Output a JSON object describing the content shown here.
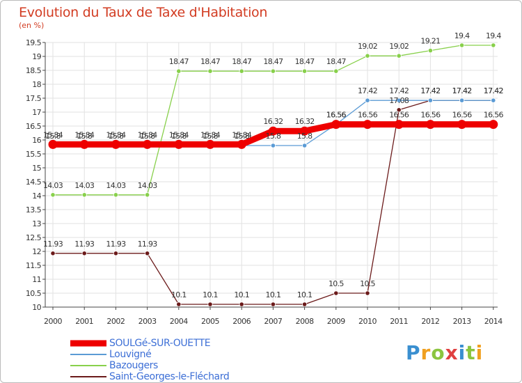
{
  "header": {
    "title": "Evolution du Taux de Taxe d'Habitation",
    "unit": "(en %)"
  },
  "chart_data": {
    "type": "line",
    "title": "Evolution du Taux de Taxe d'Habitation",
    "ylabel": "(en %)",
    "xlabel": "",
    "ylim": [
      10,
      19.5
    ],
    "yticks": [
      "10",
      "10.5",
      "11",
      "11.5",
      "12",
      "12.5",
      "13",
      "13.5",
      "14",
      "14.5",
      "15",
      "15.5",
      "16",
      "16.5",
      "17",
      "17.5",
      "18",
      "18.5",
      "19",
      "19.5"
    ],
    "categories": [
      "2000",
      "2001",
      "2002",
      "2003",
      "2004",
      "2005",
      "2006",
      "2007",
      "2008",
      "2009",
      "2010",
      "2011",
      "2012",
      "2013",
      "2014"
    ],
    "grid": true,
    "series": [
      {
        "name": "Saint-Georges-le-Fléchard",
        "color": "#6b1a1a",
        "values": [
          11.93,
          11.93,
          11.93,
          11.93,
          10.1,
          10.1,
          10.1,
          10.1,
          10.1,
          10.5,
          10.5,
          17.08,
          17.42,
          17.42,
          17.42
        ],
        "labels": [
          "11.93",
          "11.93",
          "11.93",
          "11.93",
          "10.1",
          "10.1",
          "10.1",
          "10.1",
          "10.1",
          "10.5",
          "10.5",
          "17.08",
          "17.42",
          "17.42",
          "17.42"
        ]
      },
      {
        "name": "Bazougers",
        "color": "#88d04b",
        "values": [
          14.03,
          14.03,
          14.03,
          14.03,
          18.47,
          18.47,
          18.47,
          18.47,
          18.47,
          18.47,
          19.02,
          19.02,
          19.21,
          19.4,
          19.4
        ],
        "labels": [
          "14.03",
          "14.03",
          "14.03",
          "14.03",
          "18.47",
          "18.47",
          "18.47",
          "18.47",
          "18.47",
          "18.47",
          "19.02",
          "19.02",
          "19.21",
          "19.4",
          "19.4"
        ]
      },
      {
        "name": "Louvigné",
        "color": "#5b9bd5",
        "values": [
          15.8,
          15.8,
          15.8,
          15.8,
          15.8,
          15.8,
          15.8,
          15.8,
          15.8,
          16.56,
          17.42,
          17.42,
          17.42,
          17.42,
          17.42
        ],
        "labels": [
          "15.8",
          "15.8",
          "15.8",
          "15.8",
          "15.8",
          "15.8",
          "15.8",
          "15.8",
          "15.8",
          "16.56",
          "17.42",
          "17.42",
          "17.42",
          "17.42",
          "17.42"
        ]
      },
      {
        "name": "SOULGé-SUR-OUETTE",
        "color": "#ee0000",
        "values": [
          15.84,
          15.84,
          15.84,
          15.84,
          15.84,
          15.84,
          15.84,
          16.32,
          16.32,
          16.56,
          16.56,
          16.56,
          16.56,
          16.56,
          16.56
        ],
        "labels": [
          "15.84",
          "15.84",
          "15.84",
          "15.84",
          "15.84",
          "15.84",
          "15.84",
          "16.32",
          "16.32",
          "16.56",
          "16.56",
          "16.56",
          "16.56",
          "16.56",
          "16.56"
        ]
      }
    ]
  },
  "legend": {
    "items": [
      {
        "label": "SOULGé-SUR-OUETTE",
        "color": "#ee0000"
      },
      {
        "label": "Louvigné",
        "color": "#5b9bd5"
      },
      {
        "label": "Bazougers",
        "color": "#88d04b"
      },
      {
        "label": "Saint-Georges-le-Fléchard",
        "color": "#6b1a1a"
      }
    ]
  },
  "logo": {
    "letters": [
      "P",
      "r",
      "o",
      "x",
      "i",
      "t",
      "i"
    ],
    "colors": [
      "#3a8fd0",
      "#f0a020",
      "#8bc53f",
      "#e04040",
      "#3a8fd0",
      "#8bc53f",
      "#f0a020"
    ]
  }
}
